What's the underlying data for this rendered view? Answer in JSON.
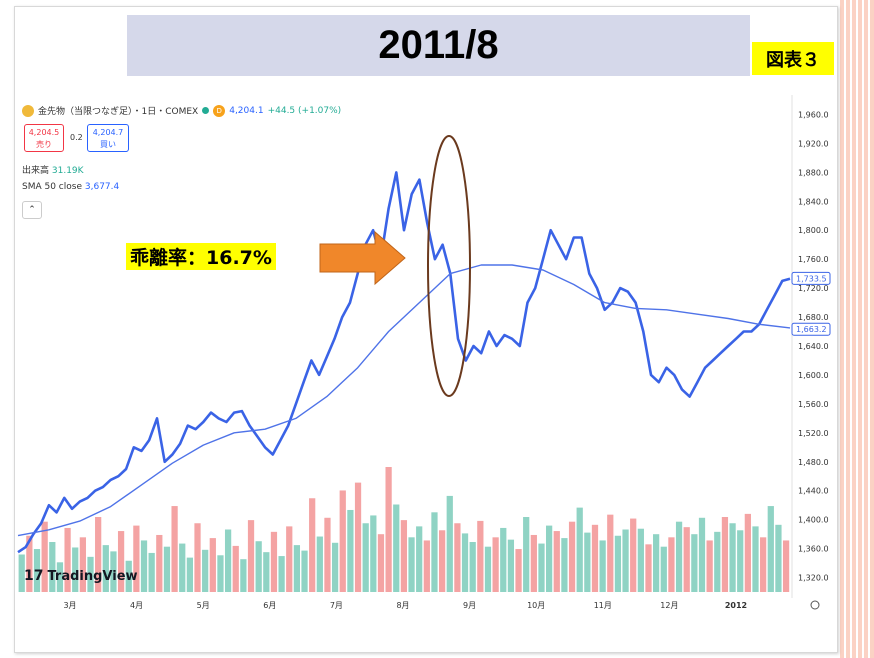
{
  "slide": {
    "title": "2011/8",
    "figure_label": "図表３",
    "callout": "乖離率：16.7%"
  },
  "header": {
    "symbol": "金先物（当限つなぎ足）・1日・COMEX",
    "interval_badge": "D",
    "last_price": "4,204.1",
    "change": "+44.5 (+1.07%)",
    "sell_price": "4,204.5",
    "sell_label": "売り",
    "spread": "0.2",
    "buy_price": "4,204.7",
    "buy_label": "買い",
    "volume_label": "出来高",
    "volume_value": "31.19K",
    "sma_label": "SMA 50 close",
    "sma_value": "3,677.4",
    "collapse_glyph": "⌃"
  },
  "logo": {
    "mark": "17",
    "text": "TradingView"
  },
  "colors": {
    "price_line": "#3a63e6",
    "sma_line": "#4f73e8",
    "vol_up": "#8fd3c4",
    "vol_down": "#f4a3a3",
    "arrow": "#f0872a",
    "ellipse": "#6b3a1e"
  },
  "chart_data": {
    "type": "line",
    "title": "",
    "xlabel": "",
    "ylabel": "",
    "ylim": [
      1300,
      1980
    ],
    "y_ticks": [
      "1,960.0",
      "1,920.0",
      "1,880.0",
      "1,840.0",
      "1,800.0",
      "1,760.0",
      "1,720.0",
      "1,680.0",
      "1,640.0",
      "1,600.0",
      "1,560.0",
      "1,520.0",
      "1,480.0",
      "1,440.0",
      "1,400.0",
      "1,360.0",
      "1,320.0"
    ],
    "x_ticks": [
      "3月",
      "4月",
      "5月",
      "6月",
      "7月",
      "8月",
      "9月",
      "10月",
      "11月",
      "12月",
      "2012"
    ],
    "x_range": [
      0,
      100
    ],
    "grid": false,
    "series": [
      {
        "x": [
          0,
          1,
          2,
          3,
          4,
          5,
          6,
          7,
          8,
          9,
          10,
          11,
          12,
          13,
          14,
          15,
          16,
          17,
          18,
          19,
          20,
          21,
          22,
          23,
          24,
          25,
          26,
          27,
          28,
          29,
          30,
          31,
          32,
          33,
          34,
          35,
          36,
          37,
          38,
          39,
          40,
          41,
          42,
          43,
          44,
          45,
          46,
          47,
          48,
          49,
          50,
          51,
          52,
          53,
          54,
          55,
          56,
          57,
          58,
          59,
          60,
          61,
          62,
          63,
          64,
          65,
          66,
          67,
          68,
          69,
          70,
          71,
          72,
          73,
          74,
          75,
          76,
          77,
          78,
          79,
          80,
          81,
          82,
          83,
          84,
          85,
          86,
          87,
          88,
          89,
          90,
          91,
          92,
          93,
          94,
          95,
          96,
          97,
          98,
          99,
          100
        ],
        "values": [
          1355,
          1362,
          1380,
          1395,
          1420,
          1410,
          1430,
          1415,
          1425,
          1430,
          1440,
          1445,
          1455,
          1460,
          1470,
          1500,
          1495,
          1510,
          1540,
          1480,
          1490,
          1505,
          1530,
          1525,
          1535,
          1548,
          1540,
          1535,
          1548,
          1550,
          1530,
          1515,
          1500,
          1490,
          1510,
          1530,
          1560,
          1590,
          1620,
          1600,
          1625,
          1650,
          1680,
          1700,
          1740,
          1780,
          1800,
          1760,
          1830,
          1880,
          1800,
          1850,
          1870,
          1810,
          1760,
          1780,
          1740,
          1650,
          1620,
          1640,
          1630,
          1660,
          1640,
          1655,
          1650,
          1640,
          1700,
          1720,
          1760,
          1800,
          1780,
          1760,
          1790,
          1790,
          1740,
          1720,
          1690,
          1700,
          1720,
          1715,
          1700,
          1660,
          1600,
          1590,
          1610,
          1600,
          1580,
          1570,
          1590,
          1610,
          1620,
          1630,
          1640,
          1650,
          1660,
          1660,
          1670,
          1690,
          1710,
          1730,
          1733
        ]
      },
      {
        "x": [
          0,
          4,
          8,
          12,
          16,
          20,
          24,
          28,
          32,
          36,
          40,
          44,
          48,
          52,
          56,
          60,
          64,
          68,
          72,
          76,
          80,
          84,
          88,
          92,
          96,
          100
        ],
        "values": [
          1378,
          1386,
          1398,
          1418,
          1448,
          1478,
          1503,
          1520,
          1525,
          1540,
          1570,
          1610,
          1660,
          1700,
          1740,
          1752,
          1752,
          1745,
          1725,
          1700,
          1692,
          1690,
          1684,
          1678,
          1670,
          1665
        ]
      }
    ],
    "price_tags": [
      "1,733.5",
      "1,663.2"
    ],
    "volume": {
      "values": [
        48,
        72,
        55,
        90,
        64,
        38,
        82,
        57,
        70,
        45,
        96,
        60,
        52,
        78,
        40,
        85,
        66,
        50,
        73,
        58,
        110,
        62,
        44,
        88,
        54,
        69,
        47,
        80,
        59,
        42,
        92,
        65,
        51,
        77,
        46,
        84,
        60,
        53,
        120,
        71,
        95,
        63,
        130,
        105,
        140,
        88,
        98,
        74,
        160,
        112,
        92,
        70,
        84,
        66,
        102,
        79,
        123,
        88,
        75,
        64,
        91,
        58,
        70,
        82,
        67,
        55,
        96,
        73,
        62,
        85,
        78,
        69,
        90,
        108,
        76,
        86,
        66,
        99,
        72,
        80,
        94,
        81,
        61,
        74,
        58,
        70,
        90,
        83,
        74,
        95,
        66,
        77,
        96,
        88,
        79,
        100,
        84,
        70,
        110,
        86,
        66
      ],
      "up": [
        1,
        0,
        1,
        0,
        1,
        1,
        0,
        1,
        0,
        1,
        0,
        1,
        1,
        0,
        1,
        0,
        1,
        1,
        0,
        1,
        0,
        1,
        1,
        0,
        1,
        0,
        1,
        1,
        0,
        1,
        0,
        1,
        1,
        0,
        1,
        0,
        1,
        1,
        0,
        1,
        0,
        1,
        0,
        1,
        0,
        1,
        1,
        0,
        0,
        1,
        0,
        1,
        1,
        0,
        1,
        0,
        1,
        0,
        1,
        1,
        0,
        1,
        0,
        1,
        1,
        0,
        1,
        0,
        1,
        1,
        0,
        1,
        0,
        1,
        1,
        0,
        1,
        0,
        1,
        1,
        0,
        1,
        0,
        1,
        1,
        0,
        1,
        0,
        1,
        1,
        0,
        1,
        0,
        1,
        1,
        0,
        1,
        0,
        1,
        1,
        0
      ]
    }
  }
}
